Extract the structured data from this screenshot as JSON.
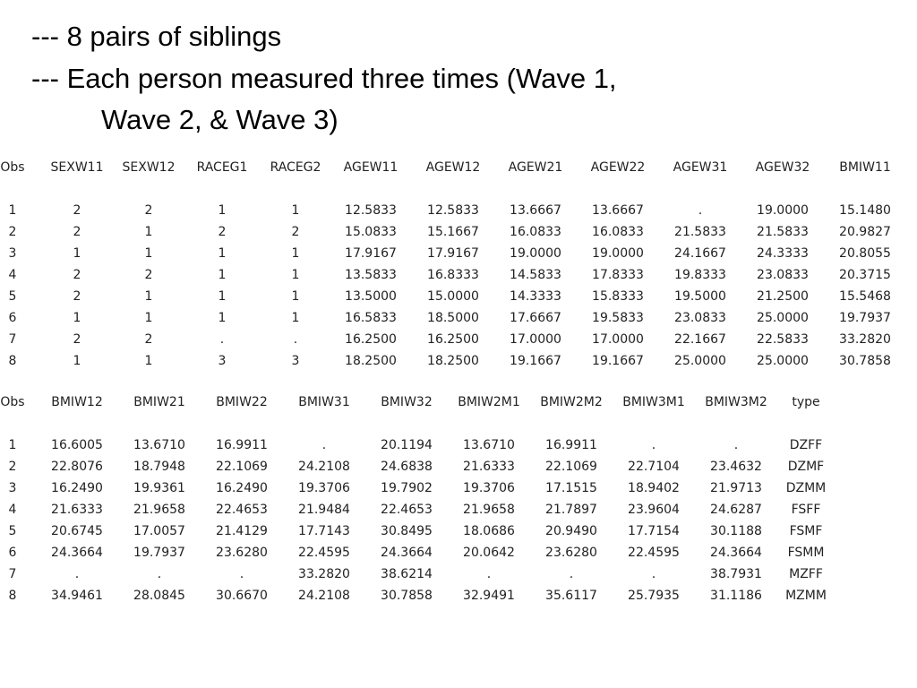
{
  "header": {
    "lines": [
      "--- 8 pairs of siblings",
      "--- Each person measured three times (Wave 1,",
      "Wave 2, & Wave 3)"
    ]
  },
  "tables": [
    {
      "columns": [
        "Obs",
        "SEXW11",
        "SEXW12",
        "RACEG1",
        "RACEG2",
        "AGEW11",
        "AGEW12",
        "AGEW21",
        "AGEW22",
        "AGEW31",
        "AGEW32",
        "BMIW11"
      ],
      "rows": [
        [
          "1",
          "2",
          "2",
          "1",
          "1",
          "12.5833",
          "12.5833",
          "13.6667",
          "13.6667",
          ".",
          "19.0000",
          "15.1480"
        ],
        [
          "2",
          "2",
          "1",
          "2",
          "2",
          "15.0833",
          "15.1667",
          "16.0833",
          "16.0833",
          "21.5833",
          "21.5833",
          "20.9827"
        ],
        [
          "3",
          "1",
          "1",
          "1",
          "1",
          "17.9167",
          "17.9167",
          "19.0000",
          "19.0000",
          "24.1667",
          "24.3333",
          "20.8055"
        ],
        [
          "4",
          "2",
          "2",
          "1",
          "1",
          "13.5833",
          "16.8333",
          "14.5833",
          "17.8333",
          "19.8333",
          "23.0833",
          "20.3715"
        ],
        [
          "5",
          "2",
          "1",
          "1",
          "1",
          "13.5000",
          "15.0000",
          "14.3333",
          "15.8333",
          "19.5000",
          "21.2500",
          "15.5468"
        ],
        [
          "6",
          "1",
          "1",
          "1",
          "1",
          "16.5833",
          "18.5000",
          "17.6667",
          "19.5833",
          "23.0833",
          "25.0000",
          "19.7937"
        ],
        [
          "7",
          "2",
          "2",
          ".",
          ".",
          "16.2500",
          "16.2500",
          "17.0000",
          "17.0000",
          "22.1667",
          "22.5833",
          "33.2820"
        ],
        [
          "8",
          "1",
          "1",
          "3",
          "3",
          "18.2500",
          "18.2500",
          "19.1667",
          "19.1667",
          "25.0000",
          "25.0000",
          "30.7858"
        ]
      ]
    },
    {
      "columns": [
        "Obs",
        "BMIW12",
        "BMIW21",
        "BMIW22",
        "BMIW31",
        "BMIW32",
        "BMIW2M1",
        "BMIW2M2",
        "BMIW3M1",
        "BMIW3M2",
        "type"
      ],
      "rows": [
        [
          "1",
          "16.6005",
          "13.6710",
          "16.9911",
          ".",
          "20.1194",
          "13.6710",
          "16.9911",
          ".",
          ".",
          "DZFF"
        ],
        [
          "2",
          "22.8076",
          "18.7948",
          "22.1069",
          "24.2108",
          "24.6838",
          "21.6333",
          "22.1069",
          "22.7104",
          "23.4632",
          "DZMF"
        ],
        [
          "3",
          "16.2490",
          "19.9361",
          "16.2490",
          "19.3706",
          "19.7902",
          "19.3706",
          "17.1515",
          "18.9402",
          "21.9713",
          "DZMM"
        ],
        [
          "4",
          "21.6333",
          "21.9658",
          "22.4653",
          "21.9484",
          "22.4653",
          "21.9658",
          "21.7897",
          "23.9604",
          "24.6287",
          "FSFF"
        ],
        [
          "5",
          "20.6745",
          "17.0057",
          "21.4129",
          "17.7143",
          "30.8495",
          "18.0686",
          "20.9490",
          "17.7154",
          "30.1188",
          "FSMF"
        ],
        [
          "6",
          "24.3664",
          "19.7937",
          "23.6280",
          "22.4595",
          "24.3664",
          "20.0642",
          "23.6280",
          "22.4595",
          "24.3664",
          "FSMM"
        ],
        [
          "7",
          ".",
          ".",
          ".",
          "33.2820",
          "38.6214",
          ".",
          ".",
          ".",
          "38.7931",
          "MZFF"
        ],
        [
          "8",
          "34.9461",
          "28.0845",
          "30.6670",
          "24.2108",
          "30.7858",
          "32.9491",
          "35.6117",
          "25.7935",
          "31.1186",
          "MZMM"
        ]
      ]
    }
  ]
}
